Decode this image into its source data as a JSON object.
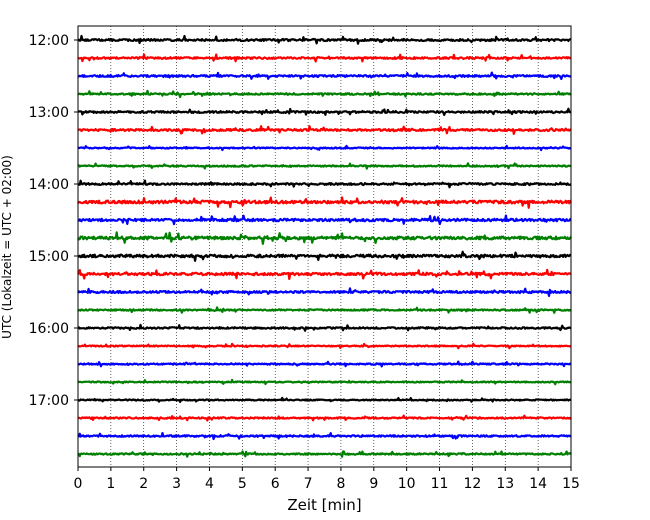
{
  "chart_data": {
    "type": "line",
    "title": "",
    "xlabel": "Zeit  [min]",
    "ylabel": "UTC (Lokalzeit = UTC + 02:00)",
    "xlim": [
      0,
      15
    ],
    "x_ticks": [
      0,
      1,
      2,
      3,
      4,
      5,
      6,
      7,
      8,
      9,
      10,
      11,
      12,
      13,
      14,
      15
    ],
    "y_tick_labels": [
      "12:00",
      "13:00",
      "14:00",
      "15:00",
      "16:00",
      "17:00"
    ],
    "grid": "vertical dotted at each minute",
    "legend": "none",
    "trace_colors": [
      "#000000",
      "#ff0000",
      "#0000ff",
      "#008000"
    ],
    "trace_interval_minutes": 15,
    "rows": [
      {
        "time": "12:00",
        "color": "#000000",
        "amplitude": 0.9
      },
      {
        "time": "12:15",
        "color": "#ff0000",
        "amplitude": 0.8
      },
      {
        "time": "12:30",
        "color": "#0000ff",
        "amplitude": 0.8
      },
      {
        "time": "12:45",
        "color": "#008000",
        "amplitude": 0.7
      },
      {
        "time": "13:00",
        "color": "#000000",
        "amplitude": 0.8
      },
      {
        "time": "13:15",
        "color": "#ff0000",
        "amplitude": 0.9
      },
      {
        "time": "13:30",
        "color": "#0000ff",
        "amplitude": 0.5
      },
      {
        "time": "13:45",
        "color": "#008000",
        "amplitude": 0.6
      },
      {
        "time": "14:00",
        "color": "#000000",
        "amplitude": 0.8
      },
      {
        "time": "14:15",
        "color": "#ff0000",
        "amplitude": 1.3
      },
      {
        "time": "14:30",
        "color": "#0000ff",
        "amplitude": 1.1
      },
      {
        "time": "14:45",
        "color": "#008000",
        "amplitude": 1.3
      },
      {
        "time": "15:00",
        "color": "#000000",
        "amplitude": 1.2
      },
      {
        "time": "15:15",
        "color": "#ff0000",
        "amplitude": 1.1
      },
      {
        "time": "15:30",
        "color": "#0000ff",
        "amplitude": 0.9
      },
      {
        "time": "15:45",
        "color": "#008000",
        "amplitude": 0.6
      },
      {
        "time": "16:00",
        "color": "#000000",
        "amplitude": 0.7
      },
      {
        "time": "16:15",
        "color": "#ff0000",
        "amplitude": 0.5
      },
      {
        "time": "16:30",
        "color": "#0000ff",
        "amplitude": 0.6
      },
      {
        "time": "16:45",
        "color": "#008000",
        "amplitude": 0.5
      },
      {
        "time": "17:00",
        "color": "#000000",
        "amplitude": 0.5
      },
      {
        "time": "17:15",
        "color": "#ff0000",
        "amplitude": 0.6
      },
      {
        "time": "17:30",
        "color": "#0000ff",
        "amplitude": 0.7
      },
      {
        "time": "17:45",
        "color": "#008000",
        "amplitude": 0.6
      }
    ]
  }
}
